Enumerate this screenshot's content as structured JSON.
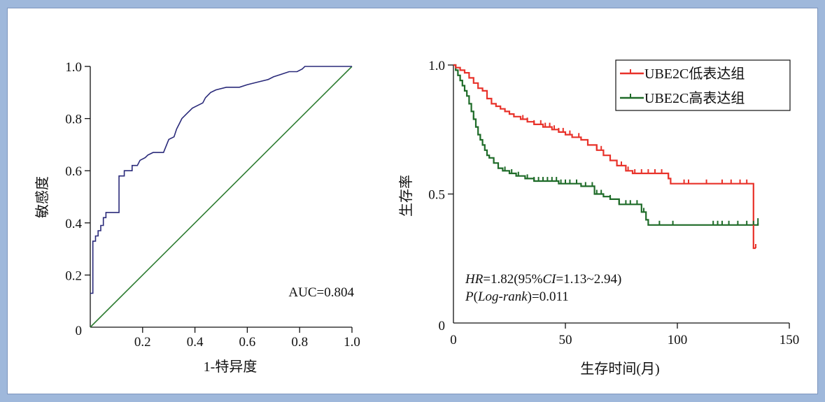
{
  "colors": {
    "roc_curve": "#2a2a7a",
    "diagonal": "#2e7d32",
    "km_low": "#e8322a",
    "km_high": "#1e6b28",
    "background": "#9fb8db"
  },
  "chart_data": [
    {
      "type": "line",
      "title": "",
      "xlabel": "1-特异度",
      "ylabel": "敏感度",
      "xlim": [
        0,
        1.0
      ],
      "ylim": [
        0,
        1.0
      ],
      "x_tick_labels": [
        "0.2",
        "0.4",
        "0.6",
        "0.8",
        "1.0"
      ],
      "y_tick_labels": [
        "0.2",
        "0.4",
        "0.6",
        "0.8",
        "1.0"
      ],
      "origin_label": "0",
      "annotation": "AUC=0.804",
      "grid": false,
      "series": [
        {
          "points": [
            [
              0,
              0.13
            ],
            [
              0.01,
              0.13
            ],
            [
              0.01,
              0.33
            ],
            [
              0.02,
              0.33
            ],
            [
              0.02,
              0.35
            ],
            [
              0.03,
              0.35
            ],
            [
              0.03,
              0.37
            ],
            [
              0.04,
              0.37
            ],
            [
              0.04,
              0.39
            ],
            [
              0.05,
              0.39
            ],
            [
              0.05,
              0.42
            ],
            [
              0.06,
              0.42
            ],
            [
              0.06,
              0.44
            ],
            [
              0.11,
              0.44
            ],
            [
              0.11,
              0.58
            ],
            [
              0.13,
              0.58
            ],
            [
              0.13,
              0.6
            ],
            [
              0.16,
              0.6
            ],
            [
              0.16,
              0.62
            ],
            [
              0.18,
              0.62
            ],
            [
              0.19,
              0.64
            ],
            [
              0.21,
              0.65
            ],
            [
              0.22,
              0.66
            ],
            [
              0.24,
              0.67
            ],
            [
              0.28,
              0.67
            ],
            [
              0.3,
              0.72
            ],
            [
              0.32,
              0.73
            ],
            [
              0.33,
              0.76
            ],
            [
              0.34,
              0.78
            ],
            [
              0.35,
              0.8
            ],
            [
              0.37,
              0.82
            ],
            [
              0.38,
              0.83
            ],
            [
              0.39,
              0.84
            ],
            [
              0.41,
              0.85
            ],
            [
              0.43,
              0.86
            ],
            [
              0.44,
              0.88
            ],
            [
              0.46,
              0.9
            ],
            [
              0.48,
              0.91
            ],
            [
              0.52,
              0.92
            ],
            [
              0.57,
              0.92
            ],
            [
              0.6,
              0.93
            ],
            [
              0.64,
              0.94
            ],
            [
              0.68,
              0.95
            ],
            [
              0.7,
              0.96
            ],
            [
              0.73,
              0.97
            ],
            [
              0.76,
              0.98
            ],
            [
              0.79,
              0.98
            ],
            [
              0.81,
              0.99
            ],
            [
              0.82,
              1.0
            ],
            [
              1.0,
              1.0
            ]
          ]
        },
        {
          "points": [
            [
              0,
              0
            ],
            [
              1,
              1
            ]
          ]
        }
      ]
    },
    {
      "type": "line",
      "title": "",
      "xlabel": "生存时间(月)",
      "ylabel": "生存率",
      "xlim": [
        0,
        150
      ],
      "ylim": [
        0,
        1.0
      ],
      "x_tick_labels": [
        "0",
        "50",
        "100",
        "150"
      ],
      "y_tick_labels": [
        "0.5",
        "1.0"
      ],
      "origin_label": "0",
      "legend": "top-right",
      "annotation_hr": "HR=1.82(95%CI=1.13~2.94)",
      "annotation_p": "P(Log-rank)=0.011",
      "grid": false,
      "series": [
        {
          "name": "UBE2C低表达组",
          "steps": [
            [
              0,
              1.0
            ],
            [
              1,
              0.99
            ],
            [
              3,
              0.98
            ],
            [
              5,
              0.97
            ],
            [
              7,
              0.95
            ],
            [
              9,
              0.93
            ],
            [
              11,
              0.91
            ],
            [
              13,
              0.9
            ],
            [
              15,
              0.87
            ],
            [
              17,
              0.85
            ],
            [
              19,
              0.84
            ],
            [
              21,
              0.83
            ],
            [
              23,
              0.82
            ],
            [
              25,
              0.81
            ],
            [
              27,
              0.8
            ],
            [
              30,
              0.79
            ],
            [
              33,
              0.78
            ],
            [
              36,
              0.77
            ],
            [
              40,
              0.76
            ],
            [
              44,
              0.75
            ],
            [
              47,
              0.74
            ],
            [
              50,
              0.73
            ],
            [
              53,
              0.72
            ],
            [
              57,
              0.71
            ],
            [
              60,
              0.69
            ],
            [
              64,
              0.67
            ],
            [
              67,
              0.65
            ],
            [
              70,
              0.63
            ],
            [
              73,
              0.61
            ],
            [
              77,
              0.59
            ],
            [
              80,
              0.58
            ],
            [
              96,
              0.56
            ],
            [
              97,
              0.54
            ],
            [
              134,
              0.54
            ],
            [
              134,
              0.29
            ],
            [
              135,
              0.29
            ]
          ],
          "censor_x": [
            31,
            33,
            36,
            39,
            41,
            43,
            45,
            47,
            49,
            52,
            56,
            60,
            64,
            66,
            75,
            78,
            81,
            84,
            87,
            90,
            93,
            96,
            103,
            105,
            113,
            120,
            124,
            128,
            131,
            135
          ]
        },
        {
          "name": "UBE2C高表达组",
          "steps": [
            [
              0,
              1.0
            ],
            [
              1,
              0.98
            ],
            [
              2,
              0.96
            ],
            [
              3,
              0.94
            ],
            [
              4,
              0.92
            ],
            [
              5,
              0.9
            ],
            [
              6,
              0.88
            ],
            [
              7,
              0.85
            ],
            [
              8,
              0.82
            ],
            [
              9,
              0.79
            ],
            [
              10,
              0.76
            ],
            [
              11,
              0.73
            ],
            [
              12,
              0.71
            ],
            [
              13,
              0.69
            ],
            [
              14,
              0.67
            ],
            [
              15,
              0.65
            ],
            [
              16,
              0.64
            ],
            [
              18,
              0.62
            ],
            [
              20,
              0.6
            ],
            [
              22,
              0.59
            ],
            [
              25,
              0.58
            ],
            [
              28,
              0.57
            ],
            [
              32,
              0.56
            ],
            [
              36,
              0.55
            ],
            [
              47,
              0.54
            ],
            [
              57,
              0.53
            ],
            [
              63,
              0.5
            ],
            [
              67,
              0.49
            ],
            [
              70,
              0.48
            ],
            [
              74,
              0.46
            ],
            [
              84,
              0.43
            ],
            [
              86,
              0.4
            ],
            [
              87,
              0.38
            ],
            [
              135,
              0.38
            ],
            [
              136,
              0.39
            ]
          ],
          "censor_x": [
            9,
            12,
            15,
            18,
            23,
            26,
            29,
            33,
            36,
            38,
            40,
            42,
            44,
            46,
            48,
            50,
            52,
            55,
            59,
            62,
            64,
            66,
            70,
            74,
            77,
            79,
            82,
            85,
            92,
            98,
            116,
            118,
            120,
            123,
            127,
            131,
            134,
            136
          ]
        }
      ]
    }
  ]
}
